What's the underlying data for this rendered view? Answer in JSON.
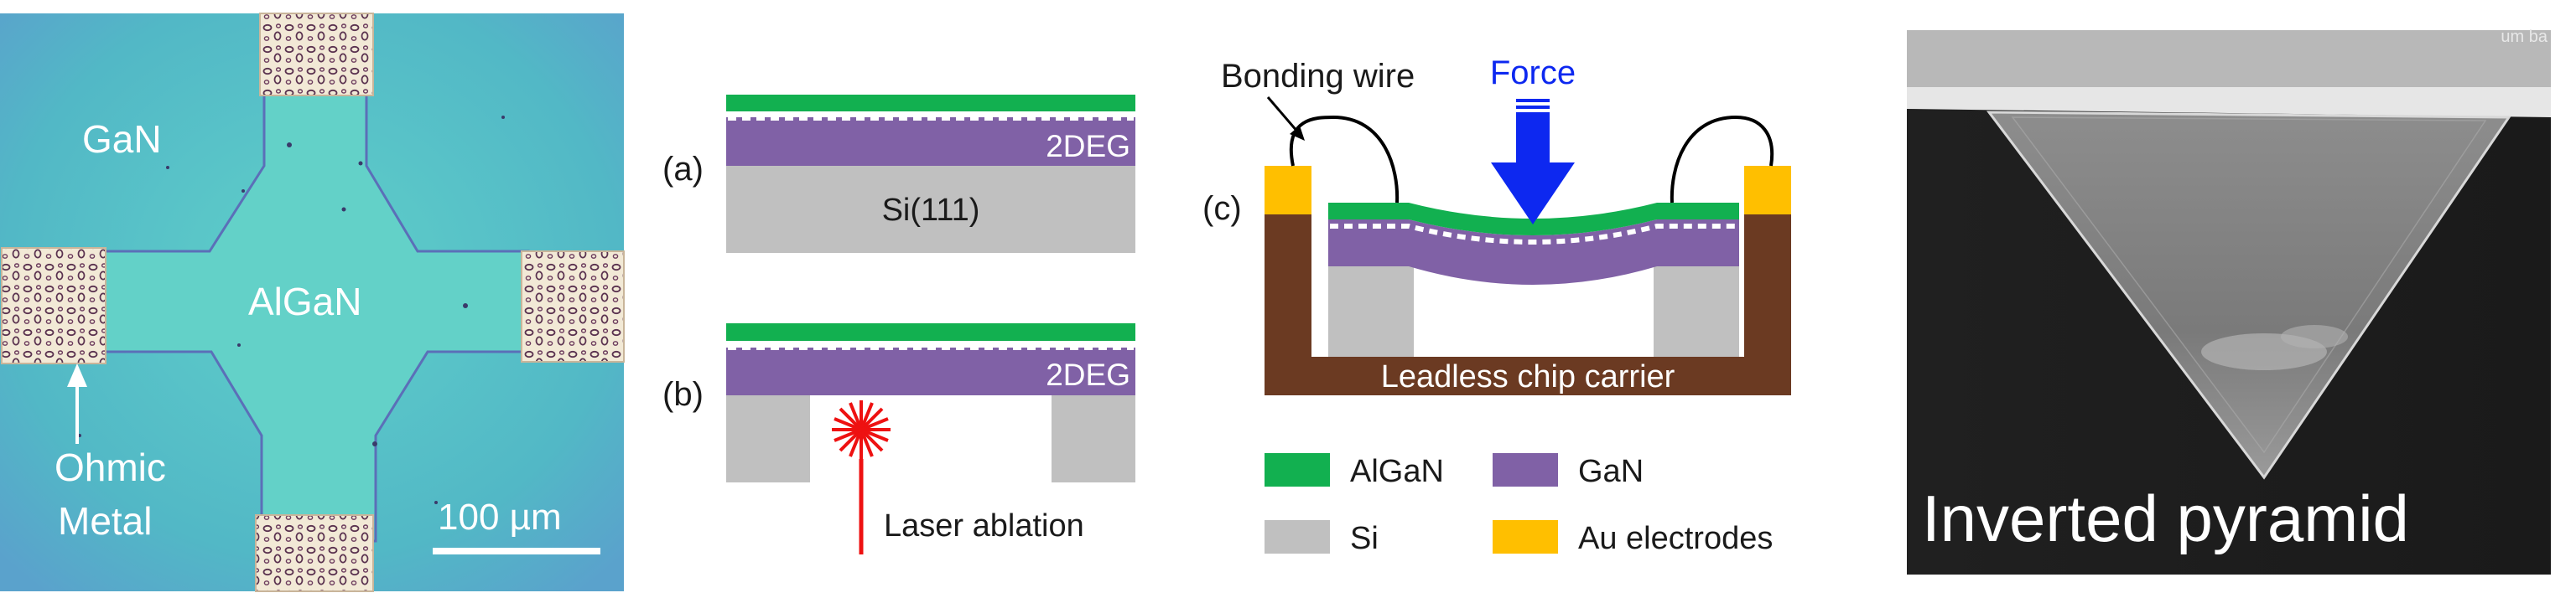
{
  "micrograph": {
    "label_gan": "GaN",
    "label_algan": "AlGaN",
    "label_ohmic_line1": "Ohmic",
    "label_ohmic_line2": "Metal",
    "scale_bar_label": "100 µm"
  },
  "cross_sections": {
    "panel_a_label": "(a)",
    "panel_b_label": "(b)",
    "twodeg_label_a": "2DEG",
    "twodeg_label_b": "2DEG",
    "substrate_label": "Si(111)",
    "laser_label": "Laser ablation"
  },
  "package": {
    "panel_c_label": "(c)",
    "bonding_wire_label": "Bonding wire",
    "force_label": "Force",
    "carrier_label": "Leadless chip carrier"
  },
  "legend": {
    "items": [
      {
        "label": "AlGaN",
        "color": "#12b050"
      },
      {
        "label": "GaN",
        "color": "#8061a6"
      },
      {
        "label": "Si",
        "color": "#c0c0c0"
      },
      {
        "label": "Au electrodes",
        "color": "#ffbf00"
      }
    ]
  },
  "sem": {
    "label": "Inverted pyramid",
    "corner_text": "um ba"
  },
  "colors": {
    "algan": "#12b050",
    "gan": "#8061a6",
    "si": "#c0c0c0",
    "au": "#ffbf00",
    "carrier": "#6b3a22",
    "force": "#0d28f0",
    "laser": "#ee1111",
    "micrograph_bg": "#58c2c4",
    "sem_bg": "#1b1b1b"
  }
}
